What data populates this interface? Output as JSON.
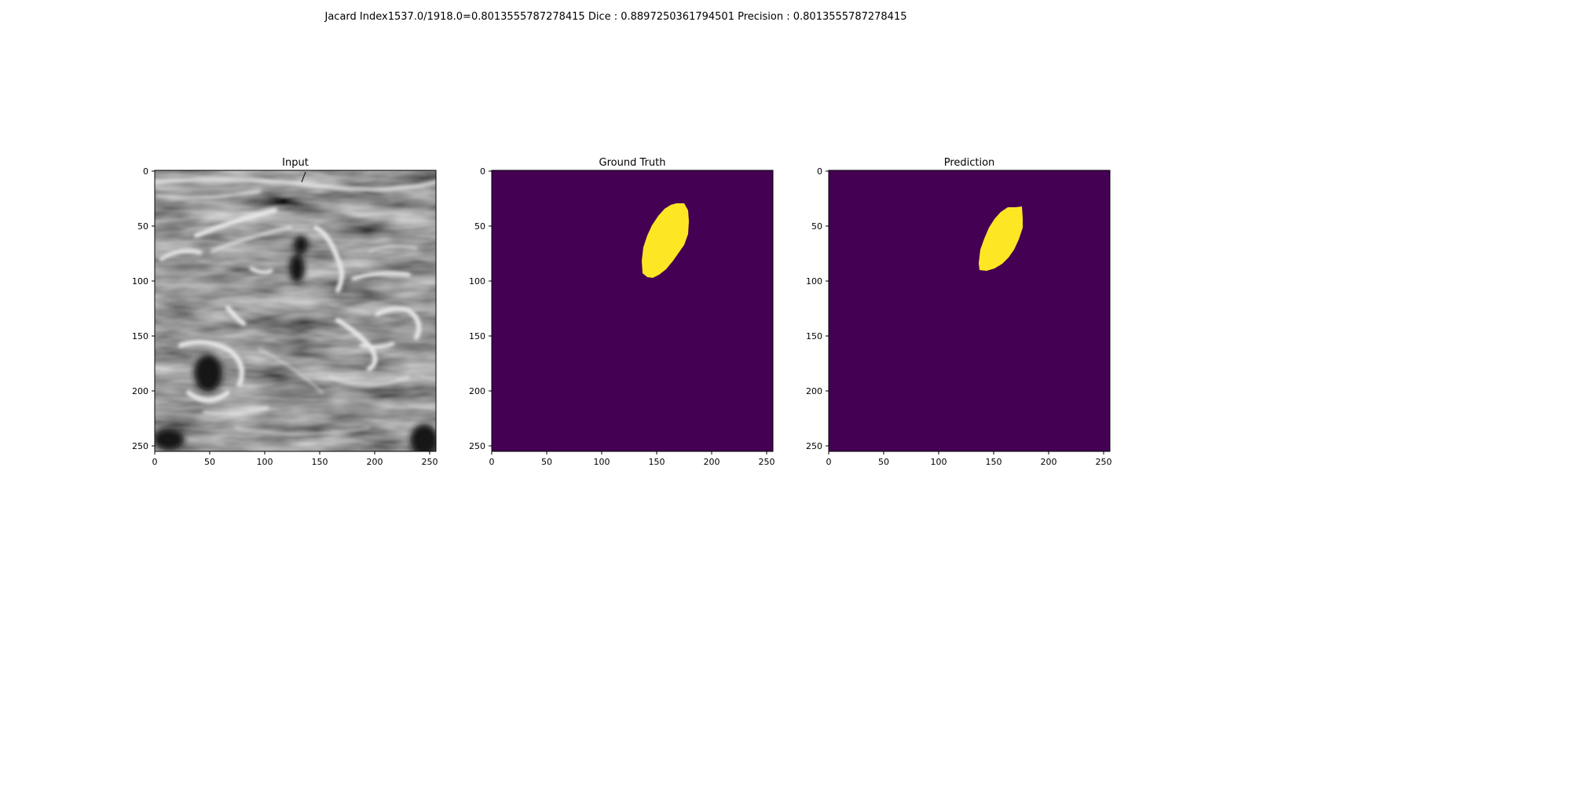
{
  "suptitle": "Jacard Index1537.0/1918.0=0.8013555787278415 Dice : 0.8897250361794501 Precision : 0.8013555787278415",
  "colors": {
    "background": "#ffffff",
    "mask_background": "#440154",
    "mask_foreground": "#fde725"
  },
  "panels": [
    {
      "title": "Input",
      "kind": "grayscale-ultrasound",
      "x_ticks": [
        "0",
        "50",
        "100",
        "150",
        "200",
        "250"
      ],
      "y_ticks": [
        "0",
        "50",
        "100",
        "150",
        "200",
        "250"
      ]
    },
    {
      "title": "Ground Truth",
      "kind": "binary-mask",
      "x_ticks": [
        "0",
        "50",
        "100",
        "150",
        "200",
        "250"
      ],
      "y_ticks": [
        "0",
        "50",
        "100",
        "150",
        "200",
        "250"
      ]
    },
    {
      "title": "Prediction",
      "kind": "binary-mask",
      "x_ticks": [
        "0",
        "50",
        "100",
        "150",
        "200",
        "250"
      ],
      "y_ticks": [
        "0",
        "50",
        "100",
        "150",
        "200",
        "250"
      ]
    }
  ]
}
